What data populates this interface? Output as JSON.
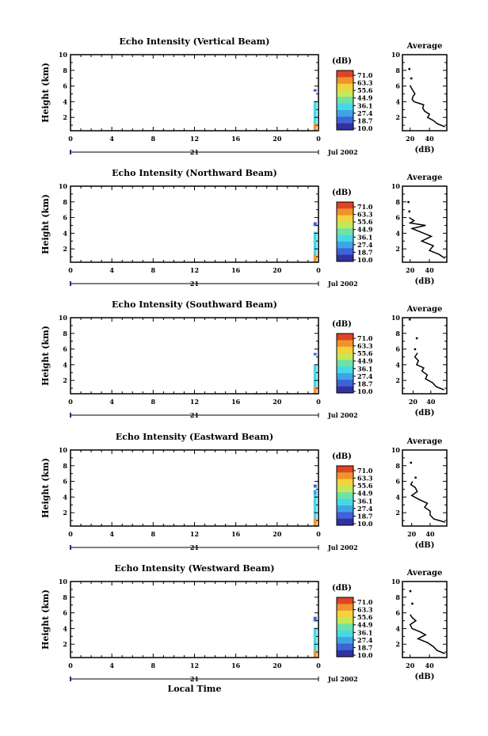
{
  "chart_data": [
    {
      "type": "heatmap",
      "title": "Echo Intensity (Vertical Beam)",
      "ylabel": "Height (km)",
      "xticks": [
        "0",
        "4",
        "8",
        "12",
        "16",
        "20",
        "0"
      ],
      "yticks": [
        "2",
        "4",
        "6",
        "8",
        "10"
      ],
      "xlim": [
        0,
        24
      ],
      "ylim": [
        0.3,
        10
      ],
      "day_label": "21",
      "date_label": "Jul 2002",
      "colorbar": {
        "unit": "(dB)",
        "ticks": [
          "71.0",
          "63.3",
          "55.6",
          "44.9",
          "36.1",
          "27.4",
          "18.7",
          "10.0"
        ]
      },
      "data_columns": [
        {
          "time": 23.6,
          "cells": [
            {
              "h0": 0.3,
              "h1": 1.2,
              "db": 60
            },
            {
              "h0": 1.2,
              "h1": 4.1,
              "db": 36
            },
            {
              "h0": 5.3,
              "h1": 5.6,
              "db": 20
            }
          ]
        }
      ],
      "average": {
        "title": "Average",
        "xlabel": "(dB)",
        "xticks": [
          "20",
          "40"
        ],
        "yticks": [
          "2",
          "4",
          "6",
          "8",
          "10"
        ],
        "xlim": [
          12,
          58
        ],
        "ylim": [
          0.3,
          10
        ],
        "profile": [
          {
            "h": 0.8,
            "db": 56
          },
          {
            "h": 1.2,
            "db": 48
          },
          {
            "h": 1.6,
            "db": 44
          },
          {
            "h": 2.0,
            "db": 38
          },
          {
            "h": 2.4,
            "db": 40
          },
          {
            "h": 2.8,
            "db": 35
          },
          {
            "h": 3.2,
            "db": 33
          },
          {
            "h": 3.6,
            "db": 34
          },
          {
            "h": 4.0,
            "db": 24
          },
          {
            "h": 4.3,
            "db": 22
          },
          {
            "h": 4.7,
            "db": 23
          },
          {
            "h": 5.0,
            "db": 25
          },
          {
            "h": 5.4,
            "db": 23
          },
          {
            "h": 5.8,
            "db": 21
          },
          {
            "h": 6.1,
            "db": 20
          }
        ],
        "points": [
          {
            "h": 8.2,
            "db": 19
          },
          {
            "h": 7.0,
            "db": 21
          }
        ]
      }
    },
    {
      "type": "heatmap",
      "title": "Echo Intensity (Northward Beam)",
      "ylabel": "Height (km)",
      "xticks": [
        "0",
        "4",
        "8",
        "12",
        "16",
        "20",
        "0"
      ],
      "yticks": [
        "2",
        "4",
        "6",
        "8",
        "10"
      ],
      "xlim": [
        0,
        24
      ],
      "ylim": [
        0.3,
        10
      ],
      "day_label": "21",
      "date_label": "Jul 2002",
      "colorbar": {
        "unit": "(dB)",
        "ticks": [
          "71.0",
          "63.3",
          "55.6",
          "44.9",
          "36.1",
          "27.4",
          "18.7",
          "10.0"
        ]
      },
      "data_columns": [
        {
          "time": 23.6,
          "cells": [
            {
              "h0": 0.3,
              "h1": 1.3,
              "db": 60
            },
            {
              "h0": 1.3,
              "h1": 4.2,
              "db": 36
            },
            {
              "h0": 4.9,
              "h1": 5.4,
              "db": 22
            }
          ]
        }
      ],
      "average": {
        "title": "Average",
        "xlabel": "(dB)",
        "xticks": [
          "20",
          "40"
        ],
        "yticks": [
          "2",
          "4",
          "6",
          "8",
          "10"
        ],
        "xlim": [
          12,
          58
        ],
        "ylim": [
          0.3,
          10
        ],
        "profile": [
          {
            "h": 0.8,
            "db": 56
          },
          {
            "h": 1.3,
            "db": 50
          },
          {
            "h": 1.8,
            "db": 40
          },
          {
            "h": 2.4,
            "db": 44
          },
          {
            "h": 3.0,
            "db": 32
          },
          {
            "h": 3.6,
            "db": 42
          },
          {
            "h": 4.2,
            "db": 30
          },
          {
            "h": 4.6,
            "db": 22
          },
          {
            "h": 5.0,
            "db": 36
          },
          {
            "h": 5.3,
            "db": 20
          },
          {
            "h": 5.6,
            "db": 24
          },
          {
            "h": 6.0,
            "db": 19
          }
        ],
        "points": [
          {
            "h": 8.0,
            "db": 18
          },
          {
            "h": 6.8,
            "db": 19
          }
        ]
      }
    },
    {
      "type": "heatmap",
      "title": "Echo Intensity (Southward Beam)",
      "ylabel": "Height (km)",
      "xticks": [
        "0",
        "4",
        "8",
        "12",
        "16",
        "20",
        "0"
      ],
      "yticks": [
        "2",
        "4",
        "6",
        "8",
        "10"
      ],
      "xlim": [
        0,
        24
      ],
      "ylim": [
        0.3,
        10
      ],
      "day_label": "21",
      "date_label": "Jul 2002",
      "colorbar": {
        "unit": "(dB)",
        "ticks": [
          "71.0",
          "63.3",
          "55.6",
          "44.9",
          "36.1",
          "27.4",
          "18.7",
          "10.0"
        ]
      },
      "data_columns": [
        {
          "time": 23.6,
          "cells": [
            {
              "h0": 0.3,
              "h1": 1.2,
              "db": 60
            },
            {
              "h0": 1.2,
              "h1": 4.0,
              "db": 36
            },
            {
              "h0": 5.2,
              "h1": 5.5,
              "db": 20
            }
          ]
        }
      ],
      "average": {
        "title": "Average",
        "xlabel": "(dB)",
        "xticks": [
          "20",
          "40"
        ],
        "yticks": [
          "2",
          "4",
          "6",
          "8",
          "10"
        ],
        "xlim": [
          8,
          58
        ],
        "ylim": [
          0.3,
          10
        ],
        "profile": [
          {
            "h": 0.8,
            "db": 55
          },
          {
            "h": 1.2,
            "db": 46
          },
          {
            "h": 1.7,
            "db": 42
          },
          {
            "h": 2.2,
            "db": 34
          },
          {
            "h": 2.7,
            "db": 36
          },
          {
            "h": 3.2,
            "db": 30
          },
          {
            "h": 3.6,
            "db": 32
          },
          {
            "h": 4.0,
            "db": 24
          },
          {
            "h": 4.5,
            "db": 26
          },
          {
            "h": 5.0,
            "db": 22
          },
          {
            "h": 5.5,
            "db": 25
          }
        ],
        "points": [
          {
            "h": 9.8,
            "db": 16
          },
          {
            "h": 7.4,
            "db": 24
          },
          {
            "h": 6.0,
            "db": 22
          }
        ]
      }
    },
    {
      "type": "heatmap",
      "title": "Echo Intensity (Eastward Beam)",
      "ylabel": "Height (km)",
      "xticks": [
        "0",
        "4",
        "8",
        "12",
        "16",
        "20",
        "0"
      ],
      "yticks": [
        "2",
        "4",
        "6",
        "8",
        "10"
      ],
      "xlim": [
        0,
        24
      ],
      "ylim": [
        0.3,
        10
      ],
      "day_label": "21",
      "date_label": "Jul 2002",
      "colorbar": {
        "unit": "(dB)",
        "ticks": [
          "71.0",
          "63.3",
          "55.6",
          "44.9",
          "36.1",
          "27.4",
          "18.7",
          "10.0"
        ]
      },
      "data_columns": [
        {
          "time": 23.6,
          "cells": [
            {
              "h0": 0.3,
              "h1": 1.3,
              "db": 60
            },
            {
              "h0": 1.3,
              "h1": 4.3,
              "db": 36
            },
            {
              "h0": 4.3,
              "h1": 4.9,
              "db": 26
            },
            {
              "h0": 5.2,
              "h1": 5.6,
              "db": 18
            }
          ]
        }
      ],
      "average": {
        "title": "Average",
        "xlabel": "(dB)",
        "xticks": [
          "20",
          "40"
        ],
        "yticks": [
          "2",
          "4",
          "6",
          "8",
          "10"
        ],
        "xlim": [
          10,
          58
        ],
        "ylim": [
          0.3,
          10
        ],
        "profile": [
          {
            "h": 0.8,
            "db": 56
          },
          {
            "h": 1.2,
            "db": 44
          },
          {
            "h": 1.7,
            "db": 40
          },
          {
            "h": 2.2,
            "db": 40
          },
          {
            "h": 2.7,
            "db": 34
          },
          {
            "h": 3.2,
            "db": 37
          },
          {
            "h": 3.7,
            "db": 28
          },
          {
            "h": 4.2,
            "db": 20
          },
          {
            "h": 4.7,
            "db": 26
          },
          {
            "h": 5.2,
            "db": 24
          },
          {
            "h": 5.6,
            "db": 19
          },
          {
            "h": 6.0,
            "db": 21
          }
        ],
        "points": [
          {
            "h": 8.4,
            "db": 19
          },
          {
            "h": 6.5,
            "db": 24
          }
        ]
      }
    },
    {
      "type": "heatmap",
      "title": "Echo Intensity (Westward Beam)",
      "ylabel": "Height (km)",
      "xticks": [
        "0",
        "4",
        "8",
        "12",
        "16",
        "20",
        "0"
      ],
      "yticks": [
        "2",
        "4",
        "6",
        "8",
        "10"
      ],
      "xlim": [
        0,
        24
      ],
      "ylim": [
        0.3,
        10
      ],
      "day_label": "21",
      "date_label": "Jul 2002",
      "xlabel": "Local Time",
      "colorbar": {
        "unit": "(dB)",
        "ticks": [
          "71.0",
          "63.3",
          "55.6",
          "44.9",
          "36.1",
          "27.4",
          "18.7",
          "10.0"
        ]
      },
      "data_columns": [
        {
          "time": 23.6,
          "cells": [
            {
              "h0": 0.3,
              "h1": 1.2,
              "db": 60
            },
            {
              "h0": 1.2,
              "h1": 4.1,
              "db": 36
            },
            {
              "h0": 4.9,
              "h1": 5.5,
              "db": 20
            }
          ]
        }
      ],
      "average": {
        "title": "Average",
        "xlabel": "(dB)",
        "xticks": [
          "20",
          "40"
        ],
        "yticks": [
          "2",
          "4",
          "6",
          "8",
          "10"
        ],
        "xlim": [
          12,
          58
        ],
        "ylim": [
          0.3,
          10
        ],
        "profile": [
          {
            "h": 0.8,
            "db": 56
          },
          {
            "h": 1.2,
            "db": 48
          },
          {
            "h": 1.7,
            "db": 44
          },
          {
            "h": 2.2,
            "db": 38
          },
          {
            "h": 2.7,
            "db": 28
          },
          {
            "h": 3.2,
            "db": 36
          },
          {
            "h": 3.6,
            "db": 30
          },
          {
            "h": 4.0,
            "db": 22
          },
          {
            "h": 4.5,
            "db": 20
          },
          {
            "h": 5.0,
            "db": 26
          },
          {
            "h": 5.4,
            "db": 22
          },
          {
            "h": 5.8,
            "db": 20
          }
        ],
        "points": [
          {
            "h": 8.8,
            "db": 20
          },
          {
            "h": 7.2,
            "db": 22
          }
        ]
      }
    }
  ],
  "colorscale": [
    "#3131a0",
    "#3f63d6",
    "#3fa4e6",
    "#46d8e6",
    "#6de3a8",
    "#c4e85a",
    "#f2d33c",
    "#f0932c",
    "#df4426"
  ]
}
